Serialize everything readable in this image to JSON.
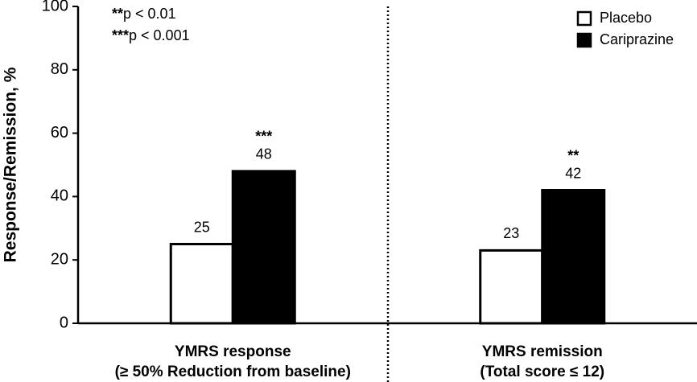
{
  "chart_data": {
    "type": "bar",
    "ylabel": "Response/Remission, %",
    "categories": [
      [
        "YMRS response",
        "(≥ 50% Reduction from baseline)"
      ],
      [
        "YMRS remission",
        "(Total score ≤ 12)"
      ]
    ],
    "series": [
      {
        "name": "Placebo",
        "color": "#ffffff",
        "values": [
          25,
          23
        ]
      },
      {
        "name": "Cariprazine",
        "color": "#000000",
        "values": [
          48,
          42
        ],
        "significance": [
          "***",
          "**"
        ]
      }
    ],
    "notes": [
      {
        "symbol": "**",
        "text": "p < 0.01"
      },
      {
        "symbol": "***",
        "text": "p < 0.001"
      }
    ],
    "ylim": [
      0,
      100
    ],
    "yticks": [
      0,
      20,
      40,
      60,
      80,
      100
    ],
    "legend": "upper right"
  }
}
